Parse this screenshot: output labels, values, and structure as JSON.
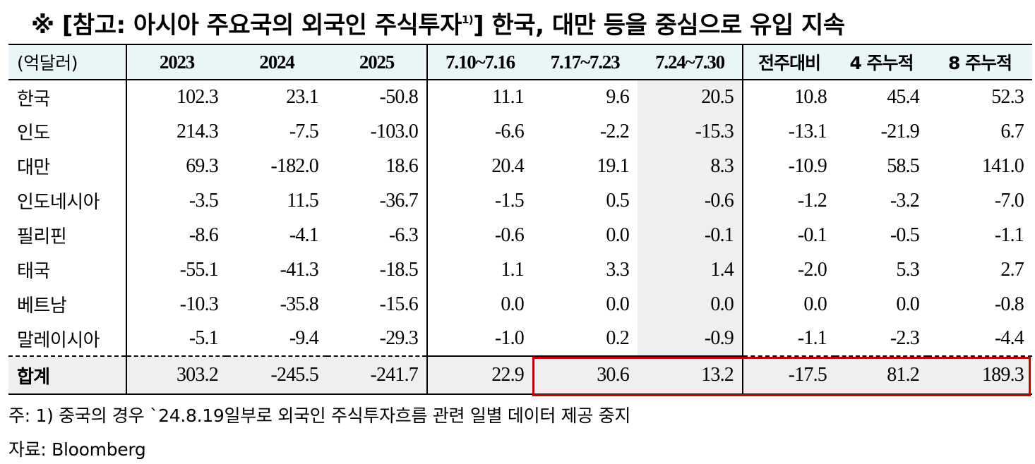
{
  "title": {
    "text": "※ [참고: 아시아 주요국의 외국인 주식투자",
    "sup": "1)",
    "tail": "] 한국, 대만 등을 중심으로 유입 지속"
  },
  "table": {
    "unit_label": "(억달러)",
    "headers": [
      "2023",
      "2024",
      "2025",
      "7.10~7.16",
      "7.17~7.23",
      "7.24~7.30",
      "전주대비",
      "4 주누적",
      "8 주누적"
    ],
    "rows": [
      {
        "country": "한국",
        "values": [
          "102.3",
          "23.1",
          "-50.8",
          "11.1",
          "9.6",
          "20.5",
          "10.8",
          "45.4",
          "52.3"
        ]
      },
      {
        "country": "인도",
        "values": [
          "214.3",
          "-7.5",
          "-103.0",
          "-6.6",
          "-2.2",
          "-15.3",
          "-13.1",
          "-21.9",
          "6.7"
        ]
      },
      {
        "country": "대만",
        "values": [
          "69.3",
          "-182.0",
          "18.6",
          "20.4",
          "19.1",
          "8.3",
          "-10.9",
          "58.5",
          "141.0"
        ]
      },
      {
        "country": "인도네시아",
        "values": [
          "-3.5",
          "11.5",
          "-36.7",
          "-1.5",
          "0.5",
          "-0.6",
          "-1.2",
          "-3.2",
          "-7.0"
        ]
      },
      {
        "country": "필리핀",
        "values": [
          "-8.6",
          "-4.1",
          "-6.3",
          "-0.6",
          "0.0",
          "-0.1",
          "-0.1",
          "-0.5",
          "-1.1"
        ]
      },
      {
        "country": "태국",
        "values": [
          "-55.1",
          "-41.3",
          "-18.5",
          "1.1",
          "3.3",
          "1.4",
          "-2.0",
          "5.3",
          "2.7"
        ]
      },
      {
        "country": "베트남",
        "values": [
          "-10.3",
          "-35.8",
          "-15.6",
          "0.0",
          "0.0",
          "0.0",
          "0.0",
          "0.0",
          "-0.8"
        ]
      },
      {
        "country": "말레이시아",
        "values": [
          "-5.1",
          "-9.4",
          "-29.3",
          "-1.0",
          "0.2",
          "-0.9",
          "-1.1",
          "-2.3",
          "-4.4"
        ]
      }
    ],
    "total": {
      "label": "합계",
      "values": [
        "303.2",
        "-245.5",
        "-241.7",
        "22.9",
        "30.6",
        "13.2",
        "-17.5",
        "81.2",
        "189.3"
      ]
    }
  },
  "colors": {
    "header_bg": "#e9f5f7",
    "highlight_bg": "#efefef",
    "box_red": "#c00000"
  },
  "notes": {
    "footnote": "주: 1) 중국의 경우 `24.8.19일부로 외국인 주식투자흐름 관련 일별 데이터 제공 중지",
    "source": "자료: Bloomberg"
  }
}
